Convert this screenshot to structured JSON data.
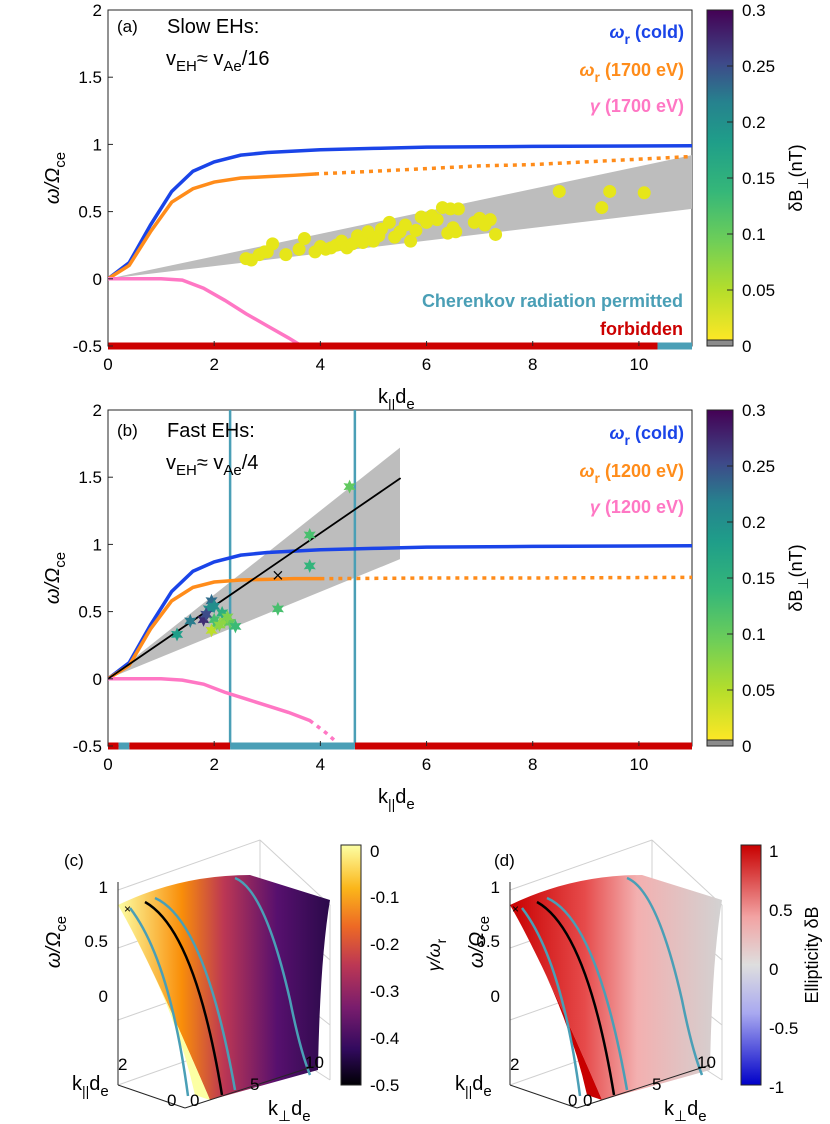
{
  "colors": {
    "cold": "#1a44e8",
    "warm": "#ff8c1a",
    "gamma": "#ff77c4",
    "cherenkov_permitted": "#4a9fb6",
    "forbidden": "#cc0000",
    "shade": "#bdbdbd",
    "trend": "#000000"
  },
  "panel_a": {
    "label": "(a)",
    "note_line1": "Slow EHs:",
    "note_v": "v",
    "note_sub1": "EH",
    "note_mid": "≈ v",
    "note_sub2": "Ae",
    "note_end": "/16",
    "legend": [
      {
        "sym": "ω",
        "sub": "r",
        "rest": " (cold)",
        "color": "#1a44e8"
      },
      {
        "sym": "ω",
        "sub": "r",
        "rest": " (1700 eV)",
        "color": "#ff8c1a"
      },
      {
        "sym": "γ",
        "sub": "",
        "rest": " (1700 eV)",
        "color": "#ff77c4"
      }
    ],
    "cherenkov_text": "Cherenkov radiation permitted",
    "forbidden_text": "forbidden"
  },
  "panel_b": {
    "label": "(b)",
    "note_line1": "Fast EHs:",
    "note_v": "v",
    "note_sub1": "EH",
    "note_mid": "≈ v",
    "note_sub2": "Ae",
    "note_end": "/4",
    "legend": [
      {
        "sym": "ω",
        "sub": "r",
        "rest": " (cold)",
        "color": "#1a44e8"
      },
      {
        "sym": "ω",
        "sub": "r",
        "rest": " (1200 eV)",
        "color": "#ff8c1a"
      },
      {
        "sym": "γ",
        "sub": "",
        "rest": " (1200 eV)",
        "color": "#ff77c4"
      }
    ],
    "marker_symbol": "×"
  },
  "axis_text": {
    "ylabel_omega": "ω/Ω",
    "ylabel_sub": "ce",
    "xlabel_k": "k",
    "xlabel_sub": "||",
    "xlabel_d": "d",
    "xlabel_sub2": "e",
    "kperp_k": "k",
    "kperp_sub": "⊥",
    "kperp_d": "d",
    "kperp_sub2": "e",
    "cbar_dB": "δB",
    "cbar_dB_sub": "⊥",
    "cbar_dB_unit": "(nT)"
  },
  "panel_c": {
    "label": "(c)",
    "cbar_label": "γ/ω",
    "cbar_label_sub": "r",
    "cbar_ticks": [
      "0",
      "-0.1",
      "-0.2",
      "-0.3",
      "-0.4",
      "-0.5"
    ],
    "z_ticks": [
      "1",
      "0.5",
      "0"
    ],
    "kpar_ticks": [
      "2",
      "0"
    ],
    "kperp_ticks": [
      "0",
      "5",
      "10"
    ]
  },
  "panel_d": {
    "label": "(d)",
    "cbar_label": "Ellipticity  δB",
    "cbar_ticks": [
      "1",
      "0.5",
      "0",
      "-0.5",
      "-1"
    ],
    "z_ticks": [
      "1",
      "0.5",
      "0"
    ],
    "kpar_ticks": [
      "2",
      "0"
    ],
    "kperp_ticks": [
      "0",
      "5",
      "10"
    ]
  },
  "chart_data": [
    {
      "type": "scatter",
      "id": "a",
      "xlim": [
        0,
        11
      ],
      "ylim": [
        -0.5,
        2
      ],
      "xticks": [
        0,
        2,
        4,
        6,
        8,
        10
      ],
      "yticks": [
        -0.5,
        0,
        0.5,
        1,
        1.5,
        2
      ],
      "series": [
        {
          "name": "ω_r (cold)",
          "kind": "line",
          "x": [
            0,
            0.4,
            0.8,
            1.2,
            1.6,
            2,
            2.5,
            3,
            4,
            5,
            6,
            8,
            11
          ],
          "y": [
            0,
            0.12,
            0.4,
            0.65,
            0.8,
            0.87,
            0.92,
            0.94,
            0.96,
            0.97,
            0.98,
            0.985,
            0.99
          ]
        },
        {
          "name": "ω_r (1700 eV)",
          "kind": "line",
          "x": [
            0,
            0.4,
            0.8,
            1.2,
            1.6,
            2,
            2.5,
            3,
            3.5,
            3.9
          ],
          "y": [
            0,
            0.1,
            0.35,
            0.57,
            0.67,
            0.72,
            0.75,
            0.76,
            0.77,
            0.78
          ]
        },
        {
          "name": "ω_r (1700 eV) dotted",
          "kind": "dotted",
          "x": [
            3.9,
            5,
            6,
            7,
            8,
            9,
            10,
            11
          ],
          "y": [
            0.78,
            0.8,
            0.82,
            0.84,
            0.85,
            0.87,
            0.89,
            0.91
          ]
        },
        {
          "name": "γ (1700 eV)",
          "kind": "line",
          "x": [
            0,
            1,
            1.4,
            1.8,
            2.2,
            2.6,
            3,
            3.4,
            3.65
          ],
          "y": [
            0,
            0,
            -0.01,
            -0.07,
            -0.16,
            -0.26,
            -0.35,
            -0.44,
            -0.5
          ]
        }
      ],
      "shade_polygon": [
        [
          0,
          0
        ],
        [
          11,
          0.92
        ],
        [
          11,
          0.52
        ]
      ],
      "points": {
        "x": [
          2.7,
          2.85,
          2.95,
          3.1,
          3.35,
          3.7,
          3.9,
          4.0,
          4.1,
          4.3,
          4.4,
          4.5,
          4.6,
          4.7,
          4.8,
          5.0,
          5.1,
          5.15,
          5.3,
          5.4,
          5.5,
          5.6,
          5.8,
          5.9,
          6.0,
          6.1,
          6.2,
          6.3,
          6.4,
          6.45,
          6.55,
          6.6,
          6.9,
          7.0,
          7.1,
          7.2,
          8.5,
          9.3,
          9.45,
          10.1,
          2.6,
          3.0,
          3.6,
          4.2,
          4.9,
          5.7,
          6.5,
          7.3
        ],
        "y": [
          0.14,
          0.18,
          0.2,
          0.26,
          0.18,
          0.3,
          0.2,
          0.24,
          0.22,
          0.25,
          0.28,
          0.23,
          0.26,
          0.32,
          0.27,
          0.28,
          0.32,
          0.37,
          0.42,
          0.31,
          0.35,
          0.4,
          0.36,
          0.46,
          0.42,
          0.47,
          0.44,
          0.53,
          0.34,
          0.52,
          0.35,
          0.52,
          0.42,
          0.45,
          0.4,
          0.44,
          0.65,
          0.53,
          0.65,
          0.64,
          0.15,
          0.2,
          0.22,
          0.23,
          0.35,
          0.28,
          0.38,
          0.33
        ]
      },
      "bottom_bar": {
        "forbidden": [
          [
            0,
            10.35
          ]
        ],
        "permitted": [
          [
            10.35,
            11
          ]
        ]
      }
    },
    {
      "type": "scatter",
      "id": "b",
      "xlim": [
        0,
        11
      ],
      "ylim": [
        -0.5,
        2
      ],
      "xticks": [
        0,
        2,
        4,
        6,
        8,
        10
      ],
      "yticks": [
        -0.5,
        0,
        0.5,
        1,
        1.5,
        2
      ],
      "series": [
        {
          "name": "ω_r (cold)",
          "kind": "line",
          "x": [
            0,
            0.4,
            0.8,
            1.2,
            1.6,
            2,
            2.5,
            3,
            4,
            5,
            6,
            8,
            11
          ],
          "y": [
            0,
            0.12,
            0.4,
            0.65,
            0.8,
            0.87,
            0.92,
            0.94,
            0.96,
            0.97,
            0.98,
            0.985,
            0.99
          ]
        },
        {
          "name": "ω_r (1200 eV)",
          "kind": "line",
          "x": [
            0,
            0.4,
            0.8,
            1.2,
            1.6,
            2,
            2.5,
            3,
            3.5,
            4
          ],
          "y": [
            0,
            0.1,
            0.37,
            0.58,
            0.68,
            0.72,
            0.735,
            0.74,
            0.745,
            0.745
          ]
        },
        {
          "name": "ω_r (1200 eV) dotted",
          "kind": "dotted",
          "x": [
            4,
            6,
            8,
            11
          ],
          "y": [
            0.745,
            0.75,
            0.75,
            0.755
          ]
        },
        {
          "name": "γ (1200 eV)",
          "kind": "line",
          "x": [
            0,
            1,
            1.4,
            1.8,
            2.2,
            2.6,
            3,
            3.4,
            3.8
          ],
          "y": [
            0,
            0,
            -0.01,
            -0.04,
            -0.1,
            -0.15,
            -0.2,
            -0.25,
            -0.31
          ]
        },
        {
          "name": "γ (1200 eV) dotted",
          "kind": "dotted",
          "x": [
            3.8,
            4.1,
            4.3
          ],
          "y": [
            -0.31,
            -0.4,
            -0.47
          ]
        },
        {
          "name": "trend",
          "kind": "trend",
          "x": [
            0,
            5.5
          ],
          "y": [
            0,
            1.49
          ]
        }
      ],
      "shade_polygon": [
        [
          0,
          0
        ],
        [
          5.5,
          1.72
        ],
        [
          5.5,
          0.89
        ]
      ],
      "vlines": [
        2.3,
        4.65
      ],
      "points": {
        "x": [
          1.3,
          1.55,
          1.8,
          1.95,
          2.0,
          2.05,
          2.15,
          2.2,
          1.95,
          2.0,
          2.3,
          2.4,
          1.9,
          2.25,
          3.2,
          3.8,
          3.8,
          4.55,
          1.85,
          2.1
        ],
        "y": [
          0.33,
          0.43,
          0.44,
          0.58,
          0.54,
          0.41,
          0.49,
          0.43,
          0.36,
          0.44,
          0.42,
          0.39,
          0.52,
          0.46,
          0.52,
          0.84,
          1.07,
          1.43,
          0.48,
          0.4
        ],
        "dB": [
          0.18,
          0.22,
          0.27,
          0.23,
          0.2,
          0.1,
          0.15,
          0.07,
          0.04,
          0.12,
          0.1,
          0.13,
          0.2,
          0.08,
          0.12,
          0.14,
          0.12,
          0.1,
          0.25,
          0.07
        ]
      },
      "marker_x": {
        "x": 3.2,
        "y": 0.77
      },
      "bottom_bar": {
        "permitted": [
          [
            0.2,
            0.4
          ],
          [
            2.3,
            4.65
          ]
        ],
        "forbidden": [
          [
            0,
            0.2
          ],
          [
            0.4,
            2.3
          ],
          [
            4.65,
            11
          ]
        ]
      }
    }
  ],
  "colorbar_ab": {
    "ticks": [
      "0.3",
      "0.25",
      "0.2",
      "0.15",
      "0.1",
      "0.05",
      "0"
    ],
    "vmin": 0,
    "vmax": 0.3
  }
}
